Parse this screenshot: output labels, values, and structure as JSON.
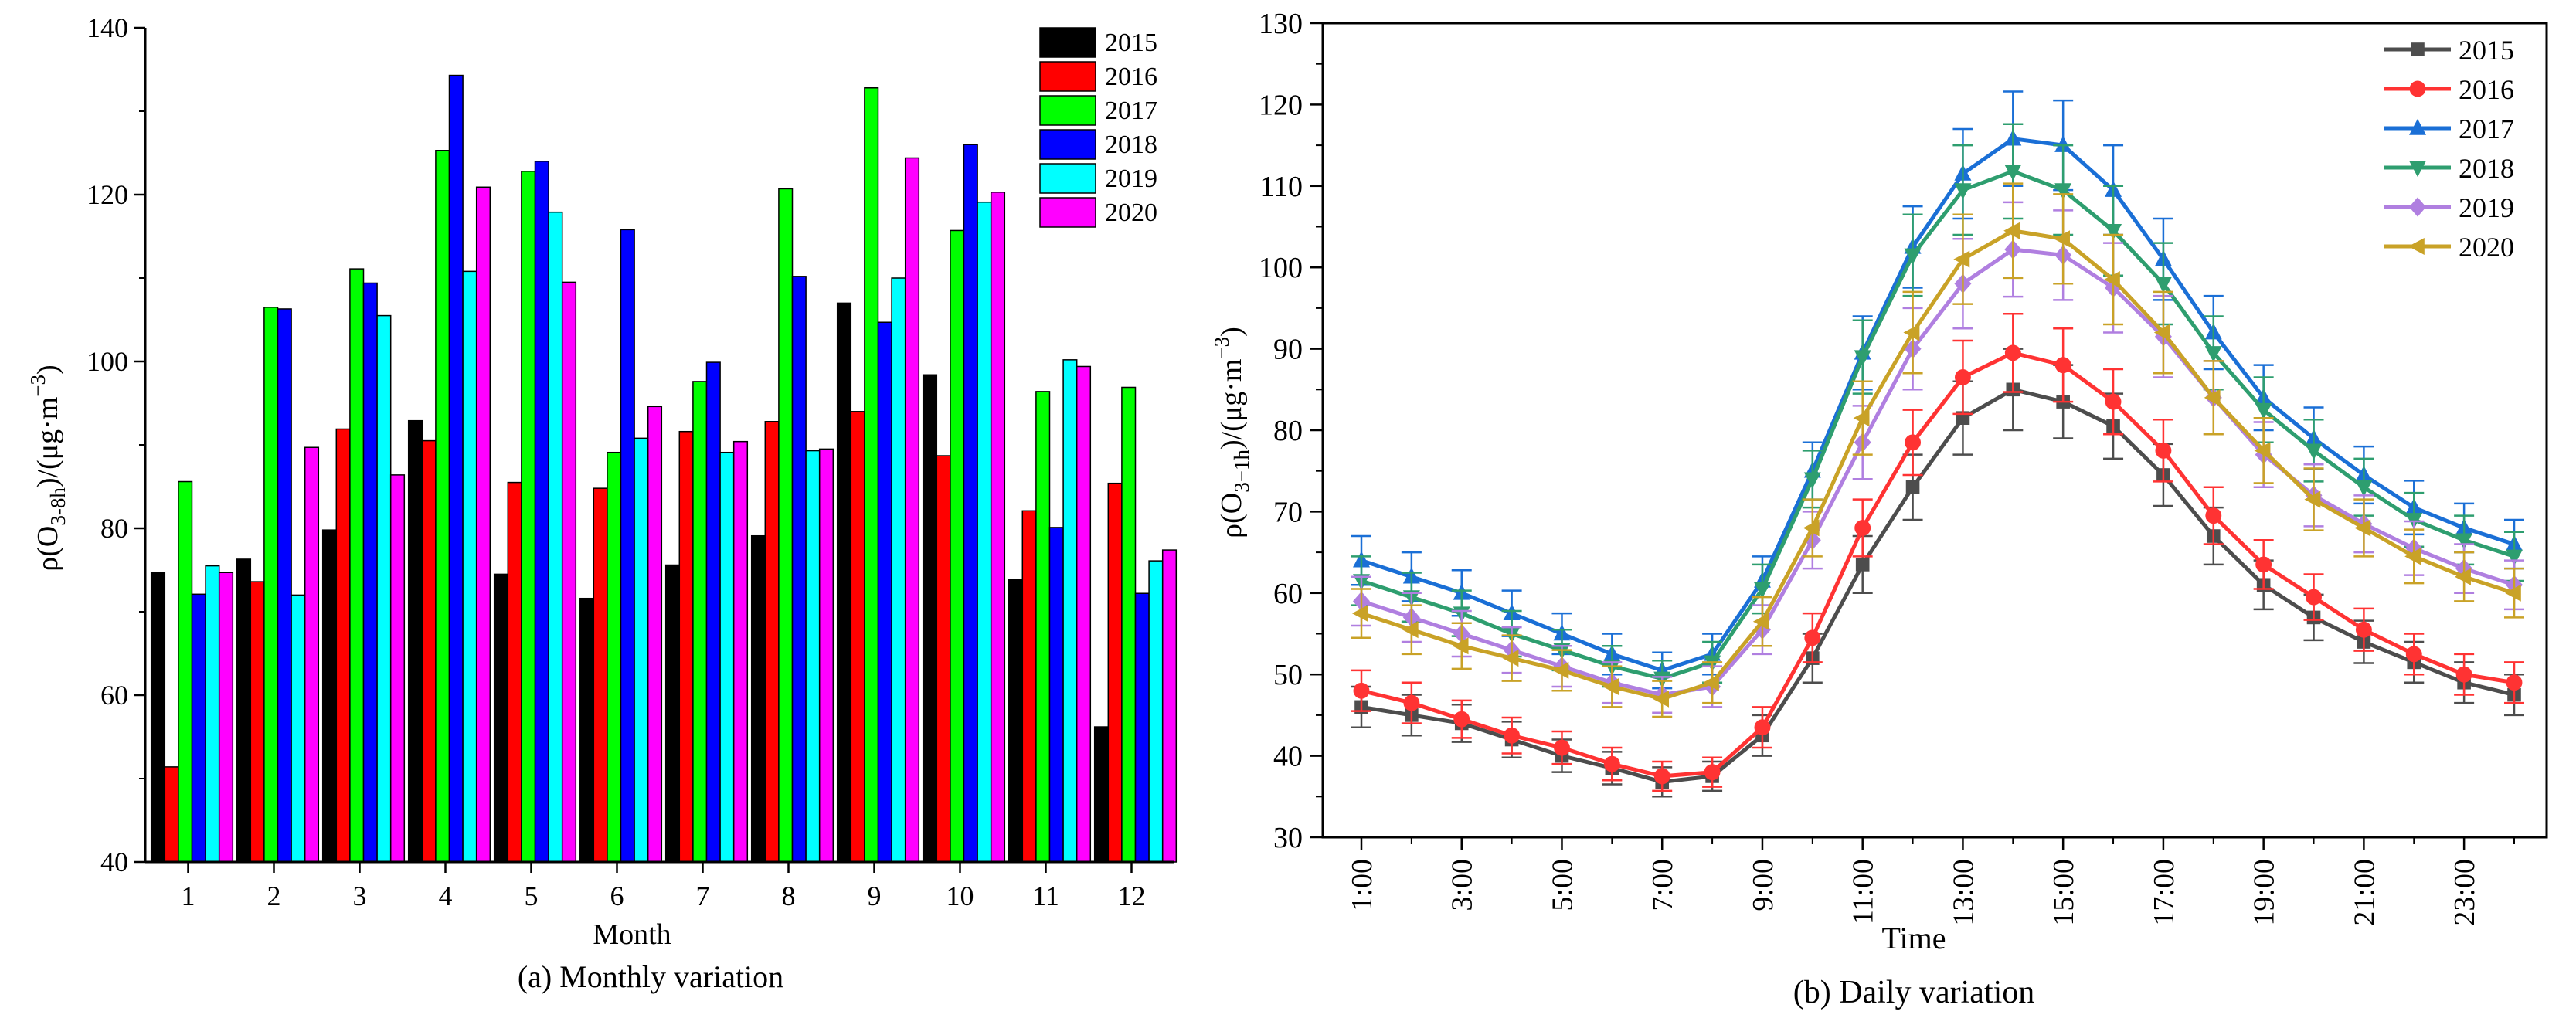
{
  "chart_data": [
    {
      "type": "bar",
      "caption": "(a) Monthly variation",
      "xlabel": "Month",
      "ylabel": "ρ(O3-8h)/(μg·m-3)",
      "ylim": [
        40,
        140
      ],
      "yticks": [
        40,
        60,
        80,
        100,
        120,
        140
      ],
      "categories": [
        "1",
        "2",
        "3",
        "4",
        "5",
        "6",
        "7",
        "8",
        "9",
        "10",
        "11",
        "12"
      ],
      "legend_position": "top-right",
      "series": [
        {
          "name": "2015",
          "color": "#000000",
          "values": [
            74.7,
            76.3,
            79.8,
            92.9,
            74.5,
            71.6,
            75.6,
            79.1,
            107.0,
            98.4,
            73.9,
            56.2
          ]
        },
        {
          "name": "2016",
          "color": "#ff0000",
          "values": [
            51.4,
            73.6,
            91.9,
            90.5,
            85.5,
            84.8,
            91.6,
            92.8,
            94.0,
            88.7,
            82.1,
            85.4
          ]
        },
        {
          "name": "2017",
          "color": "#00ff00",
          "values": [
            85.6,
            106.5,
            111.1,
            125.3,
            122.8,
            89.1,
            97.6,
            120.7,
            132.8,
            115.7,
            96.4,
            96.9
          ]
        },
        {
          "name": "2018",
          "color": "#0000ff",
          "values": [
            72.1,
            106.3,
            109.4,
            134.3,
            124.0,
            115.8,
            99.9,
            110.2,
            104.7,
            126.0,
            80.1,
            72.2
          ]
        },
        {
          "name": "2019",
          "color": "#00ffff",
          "values": [
            75.5,
            72.0,
            105.5,
            110.8,
            117.9,
            90.8,
            89.1,
            89.3,
            110.0,
            119.1,
            100.2,
            76.1
          ]
        },
        {
          "name": "2020",
          "color": "#ff00ff",
          "values": [
            74.7,
            89.7,
            86.4,
            120.9,
            109.5,
            94.6,
            90.4,
            89.5,
            124.4,
            120.3,
            99.4,
            77.4
          ]
        }
      ]
    },
    {
      "type": "line",
      "caption": "(b) Daily variation",
      "xlabel": "Time",
      "ylabel": "ρ(O3−1h)/(μg·m−3)",
      "ylim": [
        30,
        130
      ],
      "yticks": [
        30,
        40,
        50,
        60,
        70,
        80,
        90,
        100,
        110,
        120,
        130
      ],
      "x": [
        "1:00",
        "2:00",
        "3:00",
        "4:00",
        "5:00",
        "6:00",
        "7:00",
        "8:00",
        "9:00",
        "10:00",
        "11:00",
        "12:00",
        "13:00",
        "14:00",
        "15:00",
        "16:00",
        "17:00",
        "18:00",
        "19:00",
        "20:00",
        "21:00",
        "22:00",
        "23:00",
        "24:00"
      ],
      "xtick_labels": [
        "1:00",
        "3:00",
        "5:00",
        "7:00",
        "9:00",
        "11:00",
        "13:00",
        "15:00",
        "17:00",
        "19:00",
        "21:00",
        "23:00"
      ],
      "legend_position": "top-right",
      "series": [
        {
          "name": "2015",
          "color": "#4d4d4d",
          "marker": "square",
          "values": [
            46.0,
            45.0,
            44.0,
            42.0,
            40.0,
            38.5,
            36.8,
            37.5,
            42.5,
            52.0,
            63.5,
            73.0,
            81.5,
            85.0,
            83.5,
            80.5,
            74.5,
            67.0,
            61.0,
            57.0,
            54.0,
            51.5,
            49.0,
            47.5
          ],
          "error": [
            2.5,
            2.5,
            2.3,
            2.2,
            2.0,
            2.0,
            1.8,
            1.8,
            2.5,
            3.0,
            3.5,
            4.0,
            4.5,
            5.0,
            4.5,
            4.0,
            3.8,
            3.5,
            3.0,
            2.8,
            2.6,
            2.5,
            2.5,
            2.5
          ]
        },
        {
          "name": "2016",
          "color": "#ff3333",
          "marker": "circle",
          "values": [
            48.0,
            46.5,
            44.5,
            42.5,
            41.0,
            39.0,
            37.5,
            38.0,
            43.5,
            54.5,
            68.0,
            78.5,
            86.5,
            89.5,
            88.0,
            83.5,
            77.5,
            69.5,
            63.5,
            59.5,
            55.5,
            52.5,
            50.0,
            49.0
          ],
          "error": [
            2.5,
            2.5,
            2.3,
            2.2,
            2.0,
            2.0,
            1.8,
            1.8,
            2.5,
            3.0,
            3.5,
            4.0,
            4.5,
            4.8,
            4.5,
            4.0,
            3.8,
            3.5,
            3.0,
            2.8,
            2.6,
            2.5,
            2.5,
            2.5
          ]
        },
        {
          "name": "2017",
          "color": "#1a6fd6",
          "marker": "triangle-up",
          "values": [
            64.0,
            62.0,
            60.0,
            57.5,
            55.0,
            52.5,
            50.5,
            52.5,
            61.5,
            75.0,
            89.5,
            102.5,
            111.5,
            115.8,
            115.0,
            109.5,
            101.0,
            92.0,
            84.0,
            79.0,
            74.5,
            70.5,
            68.0,
            66.0
          ],
          "error": [
            3.0,
            3.0,
            2.8,
            2.8,
            2.5,
            2.5,
            2.2,
            2.5,
            3.0,
            3.5,
            4.5,
            5.0,
            5.5,
            5.8,
            5.5,
            5.5,
            5.0,
            4.5,
            4.0,
            3.8,
            3.5,
            3.3,
            3.0,
            3.0
          ]
        },
        {
          "name": "2018",
          "color": "#2e9e6f",
          "marker": "triangle-down",
          "values": [
            61.5,
            59.5,
            57.5,
            55.0,
            53.0,
            51.0,
            49.5,
            51.5,
            60.5,
            74.0,
            89.0,
            101.5,
            109.5,
            111.8,
            109.5,
            104.5,
            98.0,
            89.5,
            82.5,
            77.5,
            73.0,
            69.0,
            66.5,
            64.5
          ],
          "error": [
            3.0,
            3.0,
            2.8,
            2.8,
            2.5,
            2.5,
            2.2,
            2.5,
            3.0,
            3.5,
            4.5,
            5.0,
            5.5,
            5.8,
            5.5,
            5.5,
            5.0,
            4.5,
            4.0,
            3.8,
            3.5,
            3.3,
            3.0,
            3.0
          ]
        },
        {
          "name": "2019",
          "color": "#b07fe0",
          "marker": "diamond",
          "values": [
            59.0,
            57.0,
            55.0,
            53.0,
            51.0,
            49.0,
            47.5,
            48.5,
            55.5,
            66.5,
            78.5,
            90.0,
            98.0,
            102.2,
            101.5,
            97.5,
            91.5,
            84.0,
            77.0,
            72.0,
            68.5,
            65.5,
            63.0,
            61.0
          ],
          "error": [
            3.0,
            3.0,
            2.8,
            2.8,
            2.5,
            2.5,
            2.2,
            2.5,
            3.0,
            3.5,
            4.5,
            5.0,
            5.5,
            5.8,
            5.5,
            5.5,
            5.0,
            4.5,
            4.0,
            3.8,
            3.5,
            3.3,
            3.0,
            3.0
          ]
        },
        {
          "name": "2020",
          "color": "#c9a227",
          "marker": "triangle-left",
          "values": [
            57.5,
            55.5,
            53.5,
            52.0,
            50.5,
            48.5,
            47.0,
            49.0,
            56.5,
            68.0,
            81.5,
            92.0,
            101.0,
            104.5,
            103.5,
            98.5,
            92.0,
            84.0,
            77.5,
            71.5,
            68.0,
            64.5,
            62.0,
            60.0
          ],
          "error": [
            3.0,
            3.0,
            2.8,
            2.8,
            2.5,
            2.5,
            2.2,
            2.5,
            3.0,
            3.5,
            4.5,
            5.0,
            5.5,
            5.8,
            5.5,
            5.5,
            5.0,
            4.5,
            4.0,
            3.8,
            3.5,
            3.3,
            3.0,
            3.0
          ]
        }
      ]
    }
  ]
}
